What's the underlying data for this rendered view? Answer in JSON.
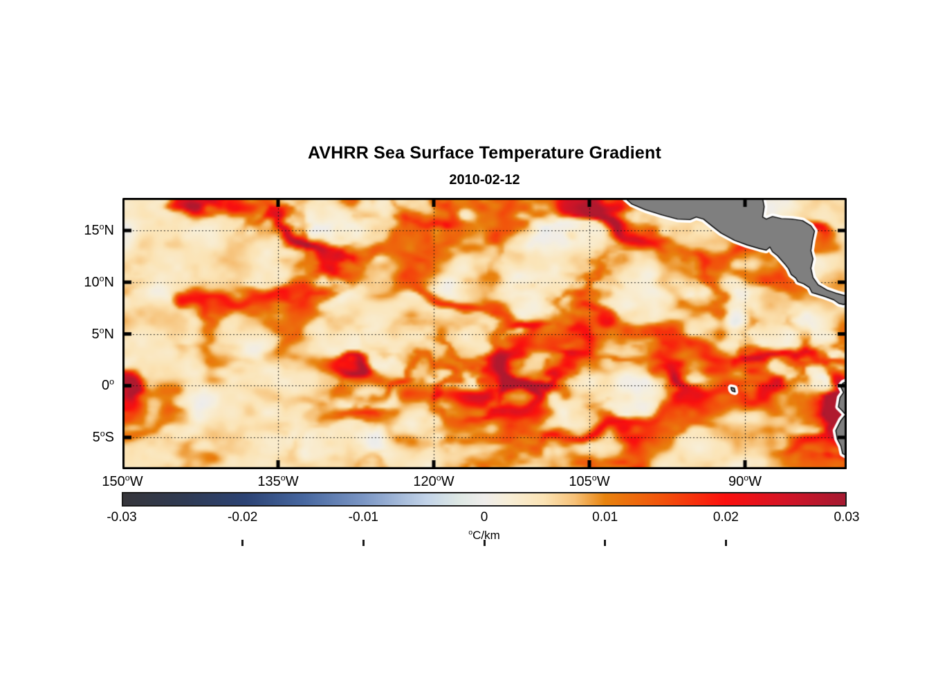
{
  "chart_data": {
    "type": "heatmap",
    "title": "AVHRR Sea Surface Temperature Gradient",
    "subtitle": "2010-02-12",
    "axes": {
      "x_ticks": [
        {
          "deg": "150",
          "sup": "o",
          "hemi": "W",
          "lon": -150
        },
        {
          "deg": "135",
          "sup": "o",
          "hemi": "W",
          "lon": -135
        },
        {
          "deg": "120",
          "sup": "o",
          "hemi": "W",
          "lon": -120
        },
        {
          "deg": "105",
          "sup": "o",
          "hemi": "W",
          "lon": -105
        },
        {
          "deg": "90",
          "sup": "o",
          "hemi": "W",
          "lon": -90
        }
      ],
      "y_ticks": [
        {
          "deg": "15",
          "sup": "o",
          "hemi": "N",
          "lat": 15
        },
        {
          "deg": "10",
          "sup": "o",
          "hemi": "N",
          "lat": 10
        },
        {
          "deg": "5",
          "sup": "o",
          "hemi": "N",
          "lat": 5
        },
        {
          "deg": "0",
          "sup": "o",
          "hemi": "",
          "lat": 0
        },
        {
          "deg": "5",
          "sup": "o",
          "hemi": "S",
          "lat": -5
        }
      ]
    },
    "map": {
      "lon_min": -150,
      "lon_max": -80.2,
      "lat_min": -8.07,
      "lat_max": 18.15,
      "grid_lats": [
        15,
        10,
        5,
        0,
        -5
      ],
      "grid_lons": [
        -135,
        -120,
        -105,
        -90
      ],
      "gridline_color": "#141414",
      "axis_color": "#000000",
      "land_color": "#7f7f7f",
      "coast_color": "#000000",
      "coast_buffer_color": "#ffffff",
      "texture": {
        "seed": 13,
        "background_sea_value": 0.0035,
        "mottle_amp": 0.012,
        "filament_amp": 0.021,
        "secondary_amp": 0.009,
        "equator_front_amp": 0.013
      },
      "land_polygons": {
        "central_america": [
          [
            -101.8,
            18.35
          ],
          [
            -100.9,
            17.55
          ],
          [
            -99.6,
            17.0
          ],
          [
            -98.0,
            16.5
          ],
          [
            -96.5,
            16.1
          ],
          [
            -95.3,
            16.05
          ],
          [
            -94.7,
            16.3
          ],
          [
            -94.0,
            16.1
          ],
          [
            -93.2,
            15.45
          ],
          [
            -92.3,
            14.75
          ],
          [
            -91.0,
            14.05
          ],
          [
            -89.8,
            13.6
          ],
          [
            -88.6,
            13.25
          ],
          [
            -87.95,
            13.1
          ],
          [
            -87.6,
            13.4
          ],
          [
            -87.35,
            12.95
          ],
          [
            -86.85,
            12.55
          ],
          [
            -86.15,
            11.75
          ],
          [
            -85.8,
            11.3
          ],
          [
            -85.55,
            10.75
          ],
          [
            -85.1,
            10.4
          ],
          [
            -84.9,
            10.05
          ],
          [
            -84.35,
            9.85
          ],
          [
            -83.8,
            9.5
          ],
          [
            -83.55,
            9.0
          ],
          [
            -83.05,
            8.85
          ],
          [
            -82.25,
            8.6
          ],
          [
            -81.45,
            8.3
          ],
          [
            -80.95,
            7.95
          ],
          [
            -80.5,
            7.85
          ],
          [
            -80.05,
            8.0
          ],
          [
            -80.05,
            8.62
          ],
          [
            -81.1,
            8.9
          ],
          [
            -82.1,
            9.25
          ],
          [
            -82.95,
            9.75
          ],
          [
            -83.45,
            10.45
          ],
          [
            -83.65,
            11.35
          ],
          [
            -83.45,
            12.25
          ],
          [
            -83.65,
            13.05
          ],
          [
            -83.5,
            14.05
          ],
          [
            -83.3,
            14.95
          ],
          [
            -83.65,
            15.45
          ],
          [
            -84.45,
            15.95
          ],
          [
            -85.45,
            16.1
          ],
          [
            -86.5,
            16.15
          ],
          [
            -87.35,
            16.35
          ],
          [
            -87.95,
            16.1
          ],
          [
            -88.3,
            16.3
          ],
          [
            -88.15,
            17.3
          ],
          [
            -88.35,
            18.35
          ]
        ],
        "south_america": [
          [
            -80.05,
            0.5
          ],
          [
            -80.55,
            0.25
          ],
          [
            -80.8,
            -0.05
          ],
          [
            -80.5,
            -0.65
          ],
          [
            -80.85,
            -1.15
          ],
          [
            -81.0,
            -2.05
          ],
          [
            -80.6,
            -2.45
          ],
          [
            -80.3,
            -2.8
          ],
          [
            -80.75,
            -3.35
          ],
          [
            -81.25,
            -4.35
          ],
          [
            -81.1,
            -5.15
          ],
          [
            -80.75,
            -5.85
          ],
          [
            -80.6,
            -6.55
          ],
          [
            -80.05,
            -6.85
          ]
        ],
        "galapagos": [
          [
            -91.35,
            -0.18
          ],
          [
            -91.02,
            -0.24
          ],
          [
            -90.95,
            -0.6
          ],
          [
            -91.22,
            -0.52
          ],
          [
            -91.32,
            -0.38
          ]
        ]
      }
    },
    "colorbar": {
      "min": -0.03,
      "max": 0.03,
      "unit_sup": "o",
      "unit_text": "C/km",
      "ticks": [
        {
          "label": "-0.03",
          "value": -0.03
        },
        {
          "label": "-0.02",
          "value": -0.02
        },
        {
          "label": "-0.01",
          "value": -0.01
        },
        {
          "label": "0",
          "value": 0
        },
        {
          "label": "0.01",
          "value": 0.01
        },
        {
          "label": "0.02",
          "value": 0.02
        },
        {
          "label": "0.03",
          "value": 0.03
        }
      ],
      "stops": [
        [
          0.0,
          "#36363b"
        ],
        [
          0.085,
          "#2f3a53"
        ],
        [
          0.17,
          "#2c4374"
        ],
        [
          0.25,
          "#47679f"
        ],
        [
          0.333,
          "#7b96c4"
        ],
        [
          0.42,
          "#c2d3e8"
        ],
        [
          0.465,
          "#dee8e4"
        ],
        [
          0.5,
          "#efedeb"
        ],
        [
          0.535,
          "#f8eed6"
        ],
        [
          0.583,
          "#fbe3b4"
        ],
        [
          0.625,
          "#f6c178"
        ],
        [
          0.667,
          "#e8830e"
        ],
        [
          0.75,
          "#f2500b"
        ],
        [
          0.833,
          "#fb100e"
        ],
        [
          0.917,
          "#d31426"
        ],
        [
          1.0,
          "#a51a31"
        ]
      ]
    }
  }
}
